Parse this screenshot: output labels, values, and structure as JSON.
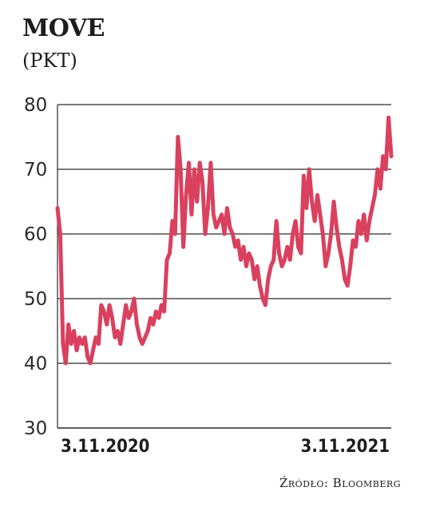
{
  "title": "MOVE",
  "unit": "(PKT)",
  "source": "Źródło: Bloomberg",
  "colors": {
    "line": "#d9415e",
    "grid": "#2a2a2a"
  },
  "chart_data": {
    "type": "line",
    "ylim": [
      30,
      80
    ],
    "yticks": [
      "80",
      "70",
      "60",
      "50",
      "40",
      "30"
    ],
    "xticks": [
      "3.11.2020",
      "3.11.2021"
    ],
    "grid": true,
    "series": [
      {
        "values": [
          64,
          60,
          43,
          40,
          46,
          43,
          45,
          42,
          44,
          43,
          44,
          41,
          40,
          42,
          44,
          43,
          49,
          48,
          46,
          49,
          47,
          44,
          45,
          43,
          46,
          49,
          47,
          48,
          50,
          46,
          44,
          43,
          44,
          45,
          47,
          46,
          48,
          47,
          49,
          48,
          56,
          57,
          62,
          60,
          75,
          70,
          58,
          66,
          71,
          63,
          70,
          65,
          71,
          68,
          60,
          64,
          71,
          63,
          61,
          62,
          63,
          60,
          64,
          61,
          60,
          58,
          59,
          56,
          58,
          55,
          57,
          56,
          53,
          55,
          52,
          50,
          49,
          53,
          55,
          56,
          62,
          57,
          55,
          56,
          58,
          56,
          60,
          62,
          58,
          57,
          69,
          64,
          70,
          65,
          62,
          66,
          63,
          60,
          55,
          57,
          60,
          65,
          61,
          58,
          56,
          53,
          52,
          55,
          59,
          58,
          62,
          60,
          63,
          59,
          62,
          64,
          66,
          70,
          67,
          72,
          70,
          78,
          72
        ]
      }
    ]
  }
}
